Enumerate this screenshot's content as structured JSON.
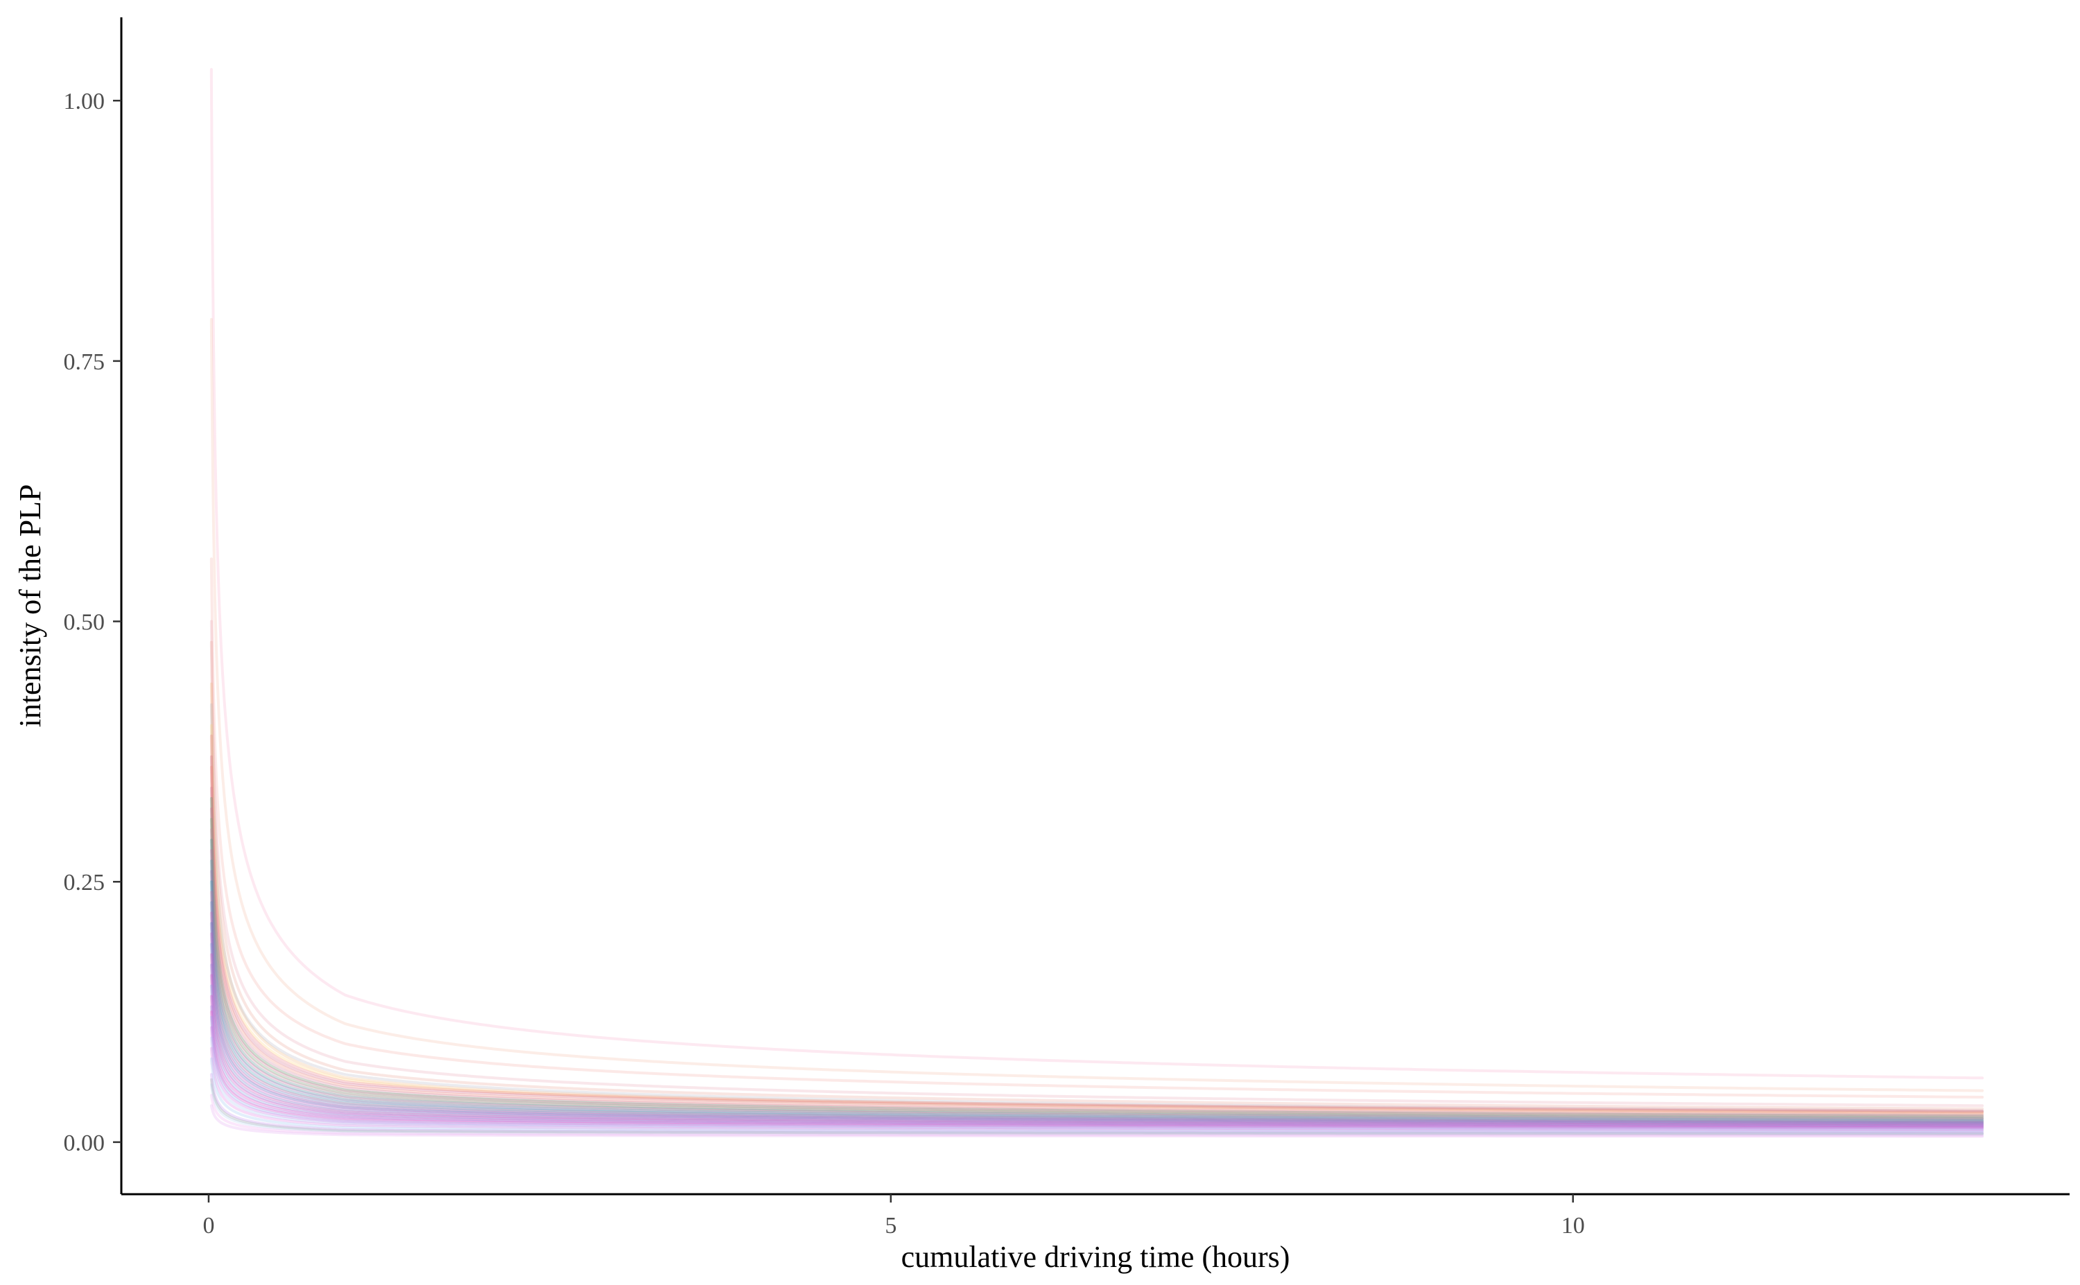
{
  "chart_data": {
    "type": "line",
    "title": "",
    "xlabel": "cumulative driving time (hours)",
    "ylabel": "intensity of the PLP",
    "xlim": [
      -0.64,
      13.64
    ],
    "ylim": [
      -0.05,
      1.08
    ],
    "x_range_of_curves": [
      0.02,
      13.0
    ],
    "x_ticks": [
      {
        "value": 0,
        "label": "0"
      },
      {
        "value": 5,
        "label": "5"
      },
      {
        "value": 10,
        "label": "10"
      }
    ],
    "y_ticks": [
      {
        "value": 0.0,
        "label": "0.00"
      },
      {
        "value": 0.25,
        "label": "0.25"
      },
      {
        "value": 0.5,
        "label": "0.50"
      },
      {
        "value": 0.75,
        "label": "0.75"
      },
      {
        "value": 1.0,
        "label": "1.00"
      }
    ],
    "grid": false,
    "legend": "none",
    "model": "power law process intensity: y = a * x^(b - 1)",
    "series_style": {
      "opacity": 0.25
    },
    "series": [
      {
        "color": "#f9a8c8",
        "values": [
          [
            0.02,
            1.03
          ],
          [
            1,
            0.1413
          ],
          [
            13,
            0.0616
          ]
        ]
      },
      {
        "color": "#f4b8a0",
        "values": [
          [
            0.02,
            0.79
          ],
          [
            1,
            0.1137
          ],
          [
            13,
            0.0494
          ]
        ]
      },
      {
        "color": "#f4a9a0",
        "values": [
          [
            0.02,
            0.56
          ],
          [
            1,
            0.0945
          ],
          [
            13,
            0.0432
          ]
        ]
      },
      {
        "color": "#e8a0b0",
        "values": [
          [
            0.02,
            0.5
          ],
          [
            1,
            0.0775
          ],
          [
            13,
            0.035
          ]
        ]
      },
      {
        "color": "#e89a8a",
        "values": [
          [
            0.02,
            0.48
          ],
          [
            1,
            0.069
          ],
          [
            13,
            0.032
          ]
        ]
      },
      {
        "color": "#f0b070",
        "values": [
          [
            0.02,
            0.44
          ],
          [
            1,
            0.062
          ],
          [
            13,
            0.029
          ]
        ]
      },
      {
        "color": "#b0b0c0",
        "values": [
          [
            0.02,
            0.42
          ],
          [
            1,
            0.065
          ],
          [
            13,
            0.03
          ]
        ]
      },
      {
        "color": "#ffd070",
        "values": [
          [
            0.02,
            0.4
          ],
          [
            1,
            0.06
          ],
          [
            13,
            0.028
          ]
        ]
      },
      {
        "color": "#e87080",
        "values": [
          [
            0.02,
            0.39
          ],
          [
            1,
            0.058
          ],
          [
            13,
            0.03
          ]
        ]
      },
      {
        "color": "#d06080",
        "values": [
          [
            0.02,
            0.37
          ],
          [
            1,
            0.056
          ],
          [
            13,
            0.029
          ]
        ]
      },
      {
        "color": "#f08070",
        "values": [
          [
            0.02,
            0.36
          ],
          [
            1,
            0.054
          ],
          [
            13,
            0.027
          ]
        ]
      },
      {
        "color": "#c87090",
        "values": [
          [
            0.02,
            0.34
          ],
          [
            1,
            0.052
          ],
          [
            13,
            0.026
          ]
        ]
      },
      {
        "color": "#40a060",
        "values": [
          [
            0.02,
            0.33
          ],
          [
            1,
            0.05
          ],
          [
            13,
            0.025
          ]
        ]
      },
      {
        "color": "#e06090",
        "values": [
          [
            0.02,
            0.32
          ],
          [
            1,
            0.049
          ],
          [
            13,
            0.0245
          ]
        ]
      },
      {
        "color": "#60b070",
        "values": [
          [
            0.02,
            0.31
          ],
          [
            1,
            0.047
          ],
          [
            13,
            0.0235
          ]
        ]
      },
      {
        "color": "#d080a0",
        "values": [
          [
            0.02,
            0.3
          ],
          [
            1,
            0.046
          ],
          [
            13,
            0.023
          ]
        ]
      },
      {
        "color": "#2a9a8a",
        "values": [
          [
            0.02,
            0.29
          ],
          [
            1,
            0.044
          ],
          [
            13,
            0.0225
          ]
        ]
      },
      {
        "color": "#e05a9a",
        "values": [
          [
            0.02,
            0.28
          ],
          [
            1,
            0.043
          ],
          [
            13,
            0.022
          ]
        ]
      },
      {
        "color": "#30a0a0",
        "values": [
          [
            0.02,
            0.27
          ],
          [
            1,
            0.041
          ],
          [
            13,
            0.021
          ]
        ]
      },
      {
        "color": "#a060b0",
        "values": [
          [
            0.02,
            0.26
          ],
          [
            1,
            0.04
          ],
          [
            13,
            0.0205
          ]
        ]
      },
      {
        "color": "#20a0b0",
        "values": [
          [
            0.02,
            0.25
          ],
          [
            1,
            0.038
          ],
          [
            13,
            0.02
          ]
        ]
      },
      {
        "color": "#e060a0",
        "values": [
          [
            0.02,
            0.24
          ],
          [
            1,
            0.037
          ],
          [
            13,
            0.0195
          ]
        ]
      },
      {
        "color": "#5080c0",
        "values": [
          [
            0.02,
            0.23
          ],
          [
            1,
            0.0355
          ],
          [
            13,
            0.019
          ]
        ]
      },
      {
        "color": "#d050b0",
        "values": [
          [
            0.02,
            0.22
          ],
          [
            1,
            0.034
          ],
          [
            13,
            0.0185
          ]
        ]
      },
      {
        "color": "#4070c0",
        "values": [
          [
            0.02,
            0.21
          ],
          [
            1,
            0.033
          ],
          [
            13,
            0.018
          ]
        ]
      },
      {
        "color": "#c050c0",
        "values": [
          [
            0.02,
            0.2
          ],
          [
            1,
            0.0315
          ],
          [
            13,
            0.0175
          ]
        ]
      },
      {
        "color": "#6090d0",
        "values": [
          [
            0.02,
            0.19
          ],
          [
            1,
            0.03
          ],
          [
            13,
            0.017
          ]
        ]
      },
      {
        "color": "#e040b0",
        "values": [
          [
            0.02,
            0.18
          ],
          [
            1,
            0.029
          ],
          [
            13,
            0.0165
          ]
        ]
      },
      {
        "color": "#8070d0",
        "values": [
          [
            0.02,
            0.17
          ],
          [
            1,
            0.0275
          ],
          [
            13,
            0.016
          ]
        ]
      },
      {
        "color": "#d040c0",
        "values": [
          [
            0.02,
            0.16
          ],
          [
            1,
            0.0265
          ],
          [
            13,
            0.0155
          ]
        ]
      },
      {
        "color": "#70a0e0",
        "values": [
          [
            0.02,
            0.15
          ],
          [
            1,
            0.025
          ],
          [
            13,
            0.015
          ]
        ]
      },
      {
        "color": "#e030c0",
        "values": [
          [
            0.02,
            0.14
          ],
          [
            1,
            0.024
          ],
          [
            13,
            0.0145
          ]
        ]
      },
      {
        "color": "#9080e0",
        "values": [
          [
            0.02,
            0.13
          ],
          [
            1,
            0.0225
          ],
          [
            13,
            0.014
          ]
        ]
      },
      {
        "color": "#f040c0",
        "values": [
          [
            0.02,
            0.125
          ],
          [
            1,
            0.0215
          ],
          [
            13,
            0.0135
          ]
        ]
      },
      {
        "color": "#80b0f0",
        "values": [
          [
            0.02,
            0.12
          ],
          [
            1,
            0.02
          ],
          [
            13,
            0.0128
          ]
        ]
      },
      {
        "color": "#d060e0",
        "values": [
          [
            0.02,
            0.11
          ],
          [
            1,
            0.019
          ],
          [
            13,
            0.012
          ]
        ]
      },
      {
        "color": "#a0c0f0",
        "values": [
          [
            0.02,
            0.1
          ],
          [
            1,
            0.0175
          ],
          [
            13,
            0.0112
          ]
        ]
      },
      {
        "color": "#e070e0",
        "values": [
          [
            0.02,
            0.09
          ],
          [
            1,
            0.016
          ],
          [
            13,
            0.0105
          ]
        ]
      },
      {
        "color": "#90c0f0",
        "values": [
          [
            0.02,
            0.08
          ],
          [
            1,
            0.014
          ],
          [
            13,
            0.0095
          ]
        ]
      },
      {
        "color": "#c080f0",
        "values": [
          [
            0.02,
            0.065
          ],
          [
            1,
            0.012
          ],
          [
            13,
            0.0085
          ]
        ]
      },
      {
        "color": "#b0d0f0",
        "values": [
          [
            0.02,
            0.055
          ],
          [
            1,
            0.01
          ],
          [
            13,
            0.0075
          ]
        ]
      },
      {
        "color": "#f0a0f0",
        "values": [
          [
            0.02,
            0.045
          ],
          [
            1,
            0.0085
          ],
          [
            13,
            0.0065
          ]
        ]
      },
      {
        "color": "#90a0a0",
        "values": [
          [
            0.02,
            0.06
          ],
          [
            1,
            0.011
          ],
          [
            13,
            0.008
          ]
        ]
      },
      {
        "color": "#e0a0f0",
        "values": [
          [
            0.02,
            0.035
          ],
          [
            1,
            0.007
          ],
          [
            13,
            0.0055
          ]
        ]
      }
    ]
  }
}
